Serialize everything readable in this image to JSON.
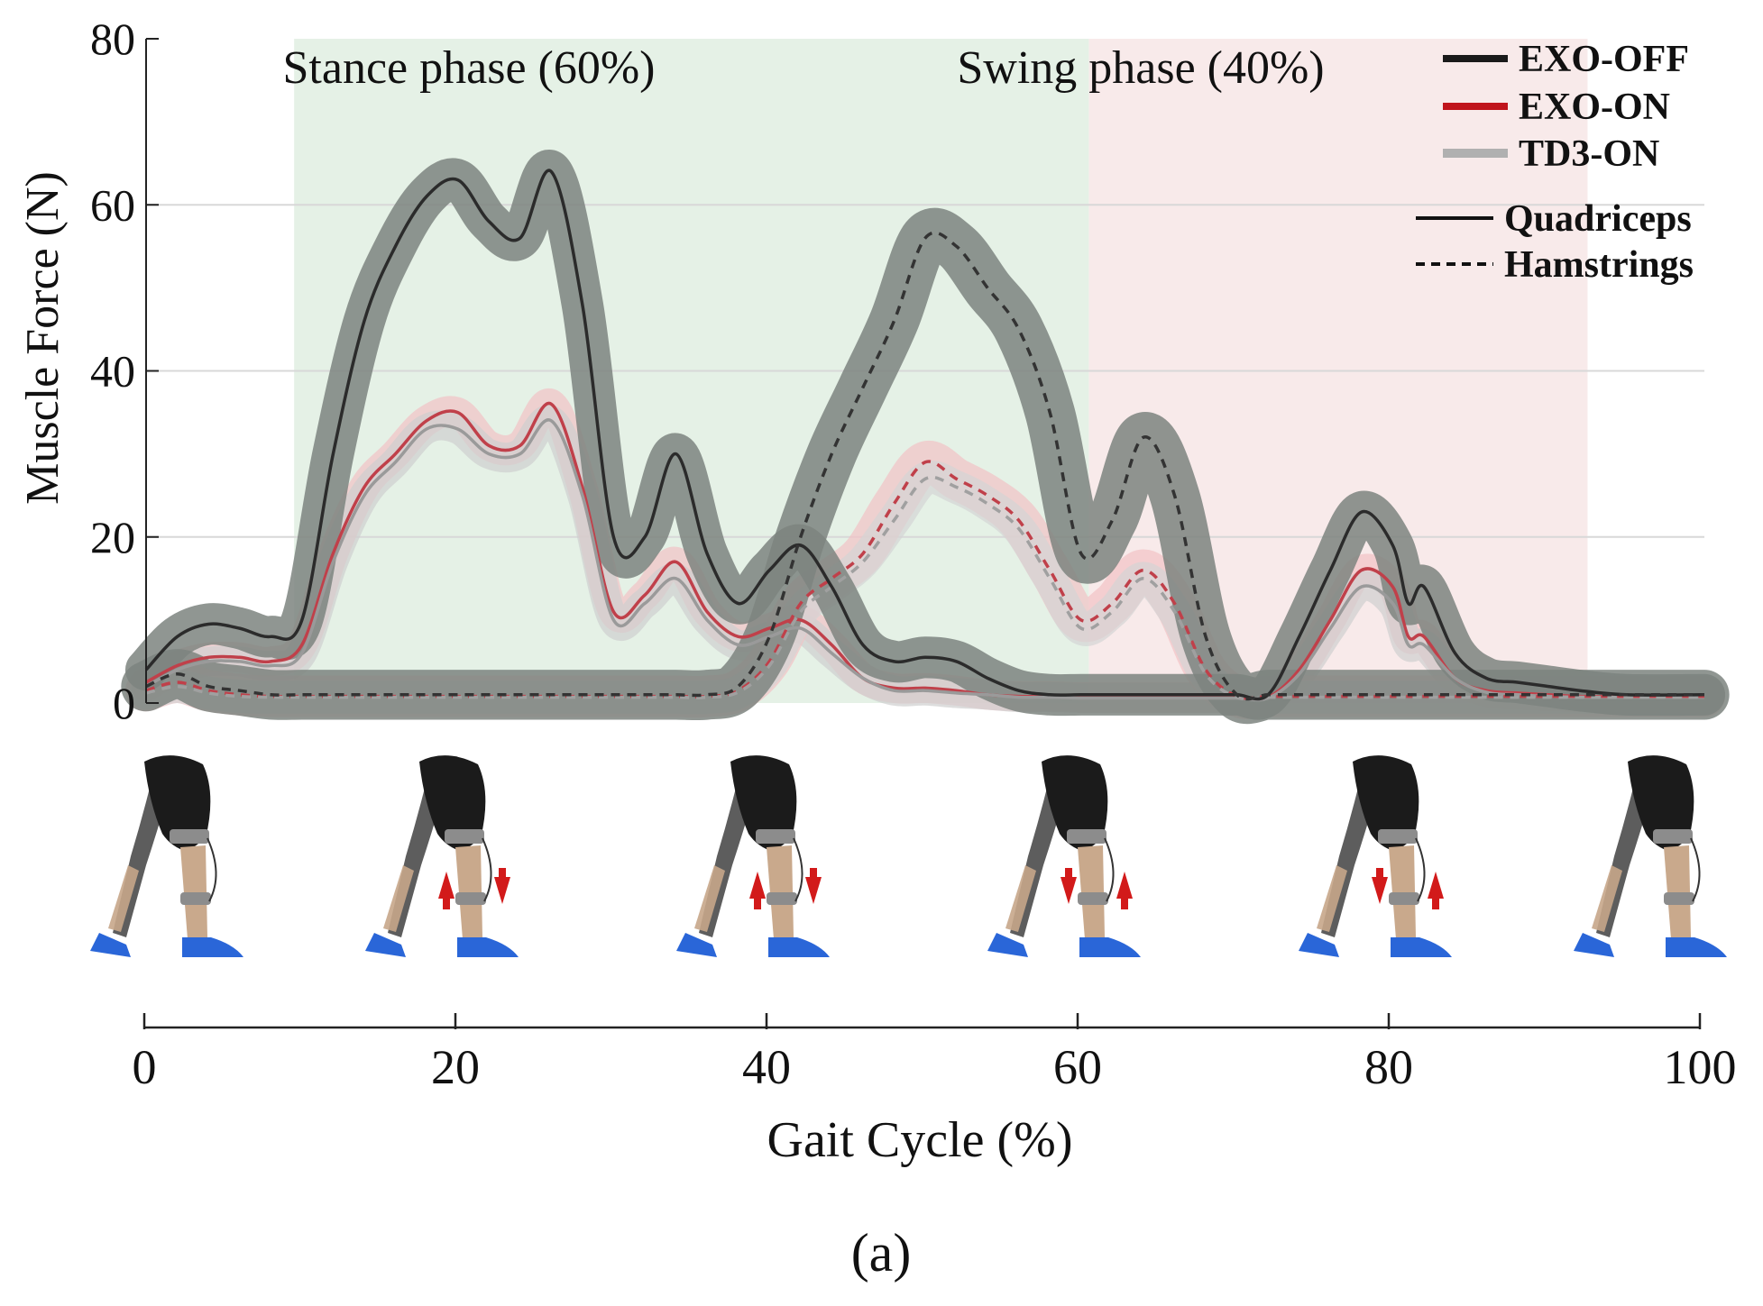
{
  "chart_data": {
    "type": "line",
    "title": "",
    "xlabel": "Gait Cycle (%)",
    "ylabel": "Muscle Force (N)",
    "xlim": [
      0,
      100
    ],
    "ylim": [
      0,
      80
    ],
    "y_ticks": [
      0,
      20,
      40,
      60,
      80
    ],
    "x_ticks": [
      0,
      20,
      40,
      60,
      80,
      100
    ],
    "grid": "horizontal",
    "panel_label": "(a)",
    "phases": [
      {
        "label": "Stance phase (60%)",
        "x_start": 9.5,
        "x_end": 60.5,
        "color": "#e5f1e6"
      },
      {
        "label": "Swing phase (40%)",
        "x_start": 60.5,
        "x_end": 92.5,
        "color": "#f8eaea"
      }
    ],
    "legend": {
      "placement": "top-right",
      "conditions": [
        {
          "label": "EXO-OFF",
          "color": "#1a1a1a"
        },
        {
          "label": "EXO-ON",
          "color": "#c0141c"
        },
        {
          "label": "TD3-ON",
          "color": "#b0b0b0"
        }
      ],
      "muscles": [
        {
          "label": "Quadriceps",
          "style": "solid"
        },
        {
          "label": "Hamstrings",
          "style": "dashed"
        }
      ]
    },
    "x": [
      0,
      2,
      4,
      6,
      8,
      10,
      12,
      14,
      16,
      18,
      20,
      22,
      24,
      26,
      28,
      30,
      32,
      34,
      36,
      38,
      40,
      42,
      44,
      46,
      48,
      50,
      52,
      54,
      56,
      58,
      60,
      62,
      64,
      66,
      68,
      70,
      72,
      74,
      76,
      78,
      80,
      81,
      82,
      84,
      86,
      88,
      90,
      92,
      95,
      100
    ],
    "series": [
      {
        "name": "EXO-OFF Quadriceps",
        "condition": "EXO-OFF",
        "muscle": "Quadriceps",
        "color": "#2b2b2b",
        "band_color": "#7d847f",
        "dash": "",
        "band": 2.5,
        "values": [
          4,
          8,
          9.5,
          9,
          8,
          10,
          30,
          46,
          55,
          61,
          63,
          58,
          56,
          64,
          48,
          20,
          20,
          30,
          18,
          12,
          16,
          19,
          14,
          7,
          5,
          5.5,
          5,
          3,
          1.5,
          1,
          1,
          1,
          1,
          1,
          1,
          1,
          1,
          8,
          16,
          23,
          19,
          12,
          14,
          6,
          3,
          2.5,
          2,
          1.5,
          1,
          1
        ]
      },
      {
        "name": "EXO-ON Quadriceps",
        "condition": "EXO-ON",
        "muscle": "Quadriceps",
        "color": "#c0404a",
        "band_color": "#f2c2c4",
        "dash": "",
        "band": 1.8,
        "values": [
          2.5,
          4.5,
          5.5,
          5.5,
          5,
          7,
          18,
          26,
          30,
          34,
          35,
          31,
          31,
          36,
          26,
          11,
          13,
          17,
          11,
          8,
          9,
          10,
          7,
          3,
          1.8,
          1.8,
          1.5,
          1,
          0.8,
          0.8,
          0.7,
          0.7,
          0.7,
          0.7,
          0.7,
          0.7,
          0.7,
          4,
          10,
          16,
          14,
          8,
          8,
          3,
          1.5,
          1.2,
          1,
          0.8,
          0.8,
          0.8
        ]
      },
      {
        "name": "TD3-ON Quadriceps",
        "condition": "TD3-ON",
        "muscle": "Quadriceps",
        "color": "#9a9a9a",
        "band_color": "#cfcfcf",
        "dash": "",
        "band": 1.8,
        "values": [
          2,
          4,
          5,
          5,
          4.5,
          6,
          17,
          25,
          29,
          33,
          33,
          30,
          30,
          34,
          25,
          10,
          12,
          15,
          10,
          7,
          8,
          9,
          6,
          3,
          1.5,
          1.5,
          1.2,
          1,
          0.7,
          0.7,
          0.6,
          0.6,
          0.6,
          0.6,
          0.6,
          0.6,
          0.6,
          3.5,
          9,
          14,
          12,
          7,
          7,
          3,
          1.3,
          1,
          0.8,
          0.7,
          0.7,
          0.7
        ]
      },
      {
        "name": "EXO-OFF Hamstrings",
        "condition": "EXO-OFF",
        "muscle": "Hamstrings",
        "color": "#333333",
        "band_color": "#7d847f",
        "dash": "10,8",
        "band": 3,
        "values": [
          2,
          3.5,
          2,
          1.5,
          1,
          1,
          1,
          1,
          1,
          1,
          1,
          1,
          1,
          1,
          1,
          1,
          1,
          1,
          1,
          2,
          8,
          20,
          30,
          38,
          46,
          56,
          55,
          50,
          45,
          35,
          18,
          22,
          32,
          25,
          8,
          1,
          1,
          1,
          1,
          1,
          1,
          1,
          1,
          1,
          1,
          1,
          1,
          1,
          1,
          1
        ]
      },
      {
        "name": "EXO-ON Hamstrings",
        "condition": "EXO-ON",
        "muscle": "Hamstrings",
        "color": "#c0404a",
        "band_color": "#f2c2c4",
        "dash": "10,8",
        "band": 2.5,
        "values": [
          1.5,
          2.5,
          1.5,
          1,
          0.8,
          0.8,
          0.8,
          0.8,
          0.8,
          0.8,
          0.8,
          0.8,
          0.8,
          0.8,
          0.8,
          0.8,
          0.8,
          0.8,
          0.8,
          1.5,
          5,
          12,
          15,
          18,
          24,
          29,
          27,
          25,
          22,
          16,
          10,
          12,
          16,
          12,
          4,
          0.8,
          0.8,
          0.8,
          0.8,
          0.8,
          0.8,
          0.8,
          0.8,
          0.8,
          0.8,
          0.8,
          0.8,
          0.8,
          0.8,
          0.8
        ]
      },
      {
        "name": "TD3-ON Hamstrings",
        "condition": "TD3-ON",
        "muscle": "Hamstrings",
        "color": "#a0a0a0",
        "band_color": "#d4d4d4",
        "dash": "10,8",
        "band": 2,
        "values": [
          1.2,
          2,
          1.2,
          0.8,
          0.7,
          0.7,
          0.7,
          0.7,
          0.7,
          0.7,
          0.7,
          0.7,
          0.7,
          0.7,
          0.7,
          0.7,
          0.7,
          0.7,
          0.7,
          1.3,
          4.5,
          11,
          14,
          17,
          22,
          27,
          26,
          24,
          21,
          15,
          9,
          11,
          15,
          11,
          3.5,
          0.7,
          0.7,
          0.7,
          0.7,
          0.7,
          0.7,
          0.7,
          0.7,
          0.7,
          0.7,
          0.7,
          0.7,
          0.7,
          0.7,
          0.7
        ]
      }
    ],
    "gait_frames": [
      {
        "x": 0,
        "arrows": []
      },
      {
        "x": 20,
        "arrows": [
          "up",
          "down"
        ]
      },
      {
        "x": 40,
        "arrows": [
          "up",
          "down"
        ]
      },
      {
        "x": 60,
        "arrows": [
          "down",
          "up"
        ]
      },
      {
        "x": 80,
        "arrows": [
          "down",
          "up"
        ]
      },
      {
        "x": 100,
        "arrows": []
      }
    ]
  }
}
